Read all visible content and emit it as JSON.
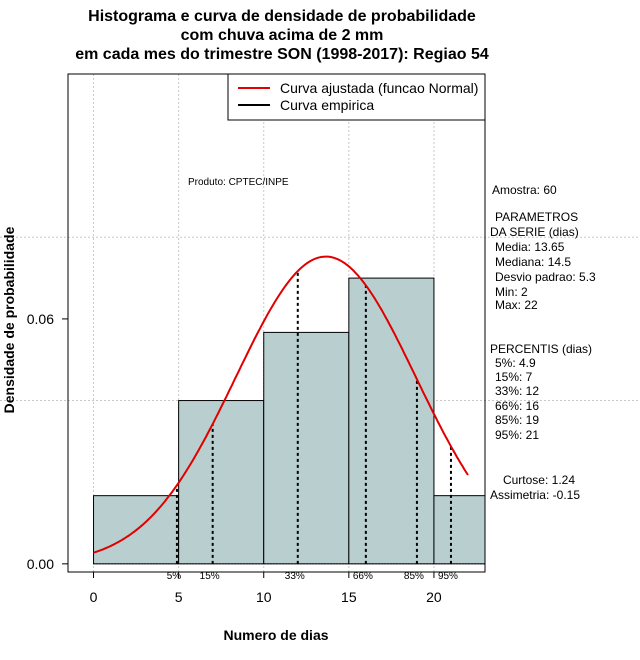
{
  "chart_data": {
    "type": "histogram",
    "title": [
      "Histograma e curva de densidade de probabilidade",
      "com chuva acima de 2 mm",
      "em cada mes do trimestre SON (1998-2017): Regiao 54"
    ],
    "xlabel": "Numero de dias",
    "ylabel": "Densidade de probabilidade",
    "xlim": [
      -1.5,
      23
    ],
    "ylim": [
      -0.002,
      0.12
    ],
    "x_ticks": [
      0,
      5,
      10,
      15,
      20
    ],
    "y_ticks": [
      0.0,
      0.06
    ],
    "y_tick_labels": [
      "0.00",
      "0.06"
    ],
    "grid": true,
    "bin_edges": [
      0,
      5,
      10,
      15,
      20,
      23
    ],
    "bin_densities": [
      0.0167,
      0.04,
      0.0567,
      0.07,
      0.0167
    ],
    "bar_color": "#b9cfcf",
    "normal_fit": {
      "mean": 13.65,
      "sd": 5.3,
      "x_range": [
        0,
        22
      ],
      "color": "#e00000"
    },
    "percentiles": [
      {
        "label": "5%",
        "x": 4.9
      },
      {
        "label": "15%",
        "x": 7
      },
      {
        "label": "33%",
        "x": 12
      },
      {
        "label": "66%",
        "x": 16
      },
      {
        "label": "85%",
        "x": 19
      },
      {
        "label": "95%",
        "x": 21
      }
    ],
    "legend": {
      "position": "top-right",
      "items": [
        {
          "label": "Curva ajustada (funcao Normal)",
          "color": "#e00000"
        },
        {
          "label": "Curva empirica",
          "color": "#000000"
        }
      ]
    },
    "annotations": {
      "produto": "Produto: CPTEC/INPE",
      "side_text": [
        "Amostra: 60",
        " PARAMETROS",
        "DA SERIE (dias)",
        "  Media: 13.65",
        "  Mediana: 14.5",
        "  Desvio padrao: 5.3",
        "  Min: 2",
        "  Max: 22",
        "PERCENTIS (dias)",
        "  5%: 4.9",
        "  15%: 7",
        "  33%: 12",
        "  66%: 16",
        "  85%: 19",
        "  95%: 21",
        "Curtose: 1.24",
        "Assimetria: -0.15"
      ]
    }
  }
}
